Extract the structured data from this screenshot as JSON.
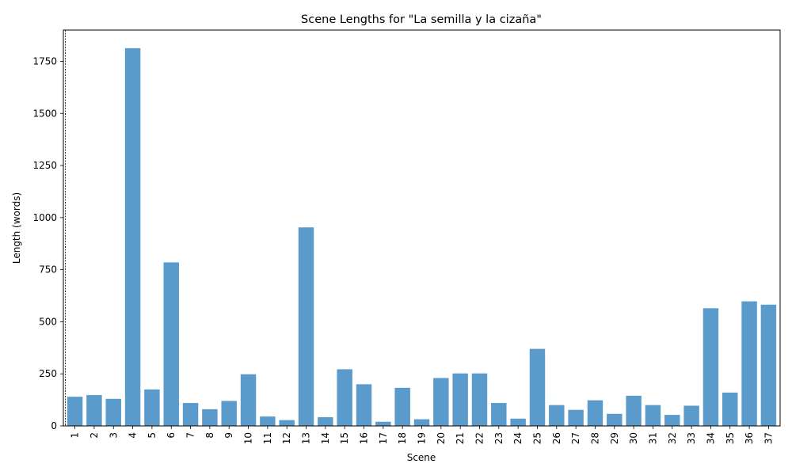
{
  "chart_data": {
    "type": "bar",
    "title": "Scene Lengths for \"La semilla y la cizaña\"",
    "xlabel": "Scene",
    "ylabel": "Length (words)",
    "categories": [
      "1",
      "2",
      "3",
      "4",
      "5",
      "6",
      "7",
      "8",
      "9",
      "10",
      "11",
      "12",
      "13",
      "14",
      "15",
      "16",
      "17",
      "18",
      "19",
      "20",
      "21",
      "22",
      "23",
      "24",
      "25",
      "26",
      "27",
      "28",
      "29",
      "30",
      "31",
      "32",
      "33",
      "34",
      "35",
      "36",
      "37"
    ],
    "values": [
      140,
      148,
      130,
      1813,
      175,
      785,
      110,
      80,
      120,
      248,
      45,
      28,
      953,
      42,
      272,
      200,
      20,
      183,
      32,
      230,
      252,
      252,
      110,
      35,
      370,
      100,
      77,
      123,
      58,
      145,
      100,
      53,
      97,
      565,
      160,
      598,
      582
    ],
    "ylim": [
      0,
      1900
    ],
    "yticks": [
      0,
      250,
      500,
      750,
      1000,
      1250,
      1500,
      1750
    ],
    "bar_color": "#5b9bcb",
    "reference_line": {
      "x": 0.5,
      "style": "dashed",
      "color": "#000000"
    },
    "grid": false,
    "legend": "none"
  }
}
